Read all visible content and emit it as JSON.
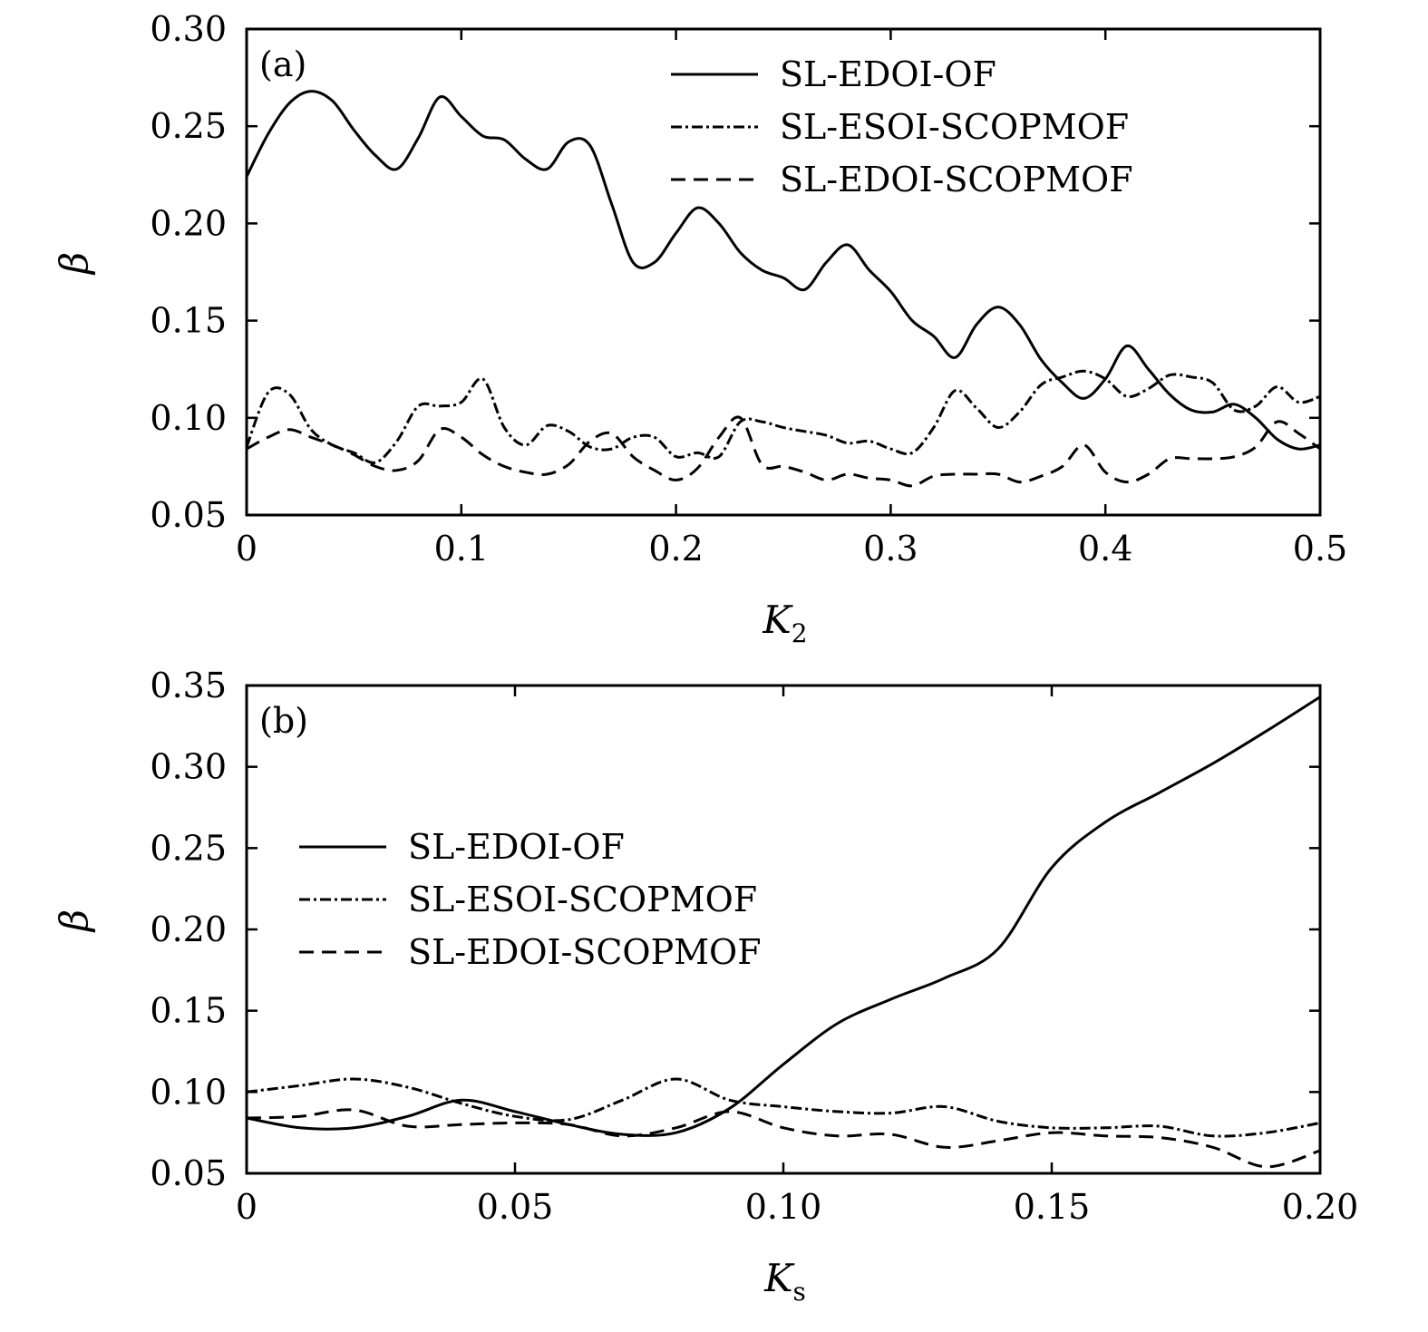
{
  "chart_data": [
    {
      "type": "line",
      "panel_label": "(a)",
      "xlabel": "K",
      "xlabel_sub": "2",
      "ylabel": "β",
      "xlim": [
        0,
        0.5
      ],
      "ylim": [
        0.05,
        0.3
      ],
      "xticks": [
        0,
        0.1,
        0.2,
        0.3,
        0.4,
        0.5
      ],
      "xtick_labels": [
        "0",
        "0.1",
        "0.2",
        "0.3",
        "0.4",
        "0.5"
      ],
      "yticks": [
        0.05,
        0.1,
        0.15,
        0.2,
        0.25,
        0.3
      ],
      "ytick_labels": [
        "0.05",
        "0.10",
        "0.15",
        "0.20",
        "0.25",
        "0.30"
      ],
      "legend_position": "top-right",
      "series": [
        {
          "name": "SL-EDOI-OF",
          "style": "solid",
          "x": [
            0,
            0.01,
            0.02,
            0.03,
            0.04,
            0.05,
            0.06,
            0.07,
            0.08,
            0.09,
            0.1,
            0.11,
            0.12,
            0.13,
            0.14,
            0.15,
            0.16,
            0.17,
            0.18,
            0.19,
            0.2,
            0.21,
            0.22,
            0.23,
            0.24,
            0.25,
            0.26,
            0.27,
            0.28,
            0.29,
            0.3,
            0.31,
            0.32,
            0.33,
            0.34,
            0.35,
            0.36,
            0.37,
            0.38,
            0.39,
            0.4,
            0.41,
            0.42,
            0.43,
            0.44,
            0.45,
            0.46,
            0.47,
            0.48,
            0.49,
            0.5
          ],
          "y": [
            0.224,
            0.246,
            0.262,
            0.268,
            0.263,
            0.248,
            0.235,
            0.228,
            0.244,
            0.265,
            0.255,
            0.245,
            0.243,
            0.233,
            0.228,
            0.242,
            0.24,
            0.21,
            0.18,
            0.18,
            0.195,
            0.208,
            0.2,
            0.185,
            0.176,
            0.172,
            0.166,
            0.18,
            0.189,
            0.176,
            0.165,
            0.15,
            0.142,
            0.131,
            0.148,
            0.157,
            0.148,
            0.13,
            0.118,
            0.11,
            0.12,
            0.137,
            0.125,
            0.112,
            0.104,
            0.103,
            0.107,
            0.1,
            0.089,
            0.084,
            0.086
          ]
        },
        {
          "name": "SL-ESOI-SCOPMOF",
          "style": "dashdot",
          "x": [
            0,
            0.01,
            0.02,
            0.03,
            0.04,
            0.05,
            0.06,
            0.07,
            0.08,
            0.09,
            0.1,
            0.11,
            0.12,
            0.13,
            0.14,
            0.15,
            0.16,
            0.17,
            0.18,
            0.19,
            0.2,
            0.21,
            0.22,
            0.23,
            0.24,
            0.25,
            0.26,
            0.27,
            0.28,
            0.29,
            0.3,
            0.31,
            0.32,
            0.33,
            0.34,
            0.35,
            0.36,
            0.37,
            0.38,
            0.39,
            0.4,
            0.41,
            0.42,
            0.43,
            0.44,
            0.45,
            0.46,
            0.47,
            0.48,
            0.49,
            0.5
          ],
          "y": [
            0.085,
            0.113,
            0.112,
            0.094,
            0.086,
            0.082,
            0.077,
            0.088,
            0.106,
            0.106,
            0.108,
            0.12,
            0.095,
            0.086,
            0.096,
            0.093,
            0.085,
            0.084,
            0.09,
            0.09,
            0.08,
            0.082,
            0.08,
            0.098,
            0.098,
            0.095,
            0.093,
            0.091,
            0.087,
            0.088,
            0.084,
            0.082,
            0.095,
            0.114,
            0.105,
            0.095,
            0.103,
            0.117,
            0.121,
            0.124,
            0.12,
            0.111,
            0.115,
            0.122,
            0.121,
            0.118,
            0.104,
            0.106,
            0.116,
            0.108,
            0.111
          ]
        },
        {
          "name": "SL-EDOI-SCOPMOF",
          "style": "dashed",
          "x": [
            0,
            0.01,
            0.02,
            0.03,
            0.04,
            0.05,
            0.06,
            0.07,
            0.08,
            0.09,
            0.1,
            0.11,
            0.12,
            0.13,
            0.14,
            0.15,
            0.16,
            0.17,
            0.18,
            0.19,
            0.2,
            0.21,
            0.22,
            0.23,
            0.24,
            0.25,
            0.26,
            0.27,
            0.28,
            0.29,
            0.3,
            0.31,
            0.32,
            0.33,
            0.34,
            0.35,
            0.36,
            0.37,
            0.38,
            0.39,
            0.4,
            0.41,
            0.42,
            0.43,
            0.44,
            0.45,
            0.46,
            0.47,
            0.48,
            0.49,
            0.5
          ],
          "y": [
            0.084,
            0.09,
            0.094,
            0.09,
            0.086,
            0.081,
            0.075,
            0.073,
            0.078,
            0.094,
            0.09,
            0.081,
            0.075,
            0.072,
            0.071,
            0.076,
            0.088,
            0.092,
            0.08,
            0.073,
            0.068,
            0.074,
            0.09,
            0.1,
            0.076,
            0.075,
            0.072,
            0.068,
            0.071,
            0.069,
            0.068,
            0.065,
            0.07,
            0.071,
            0.071,
            0.071,
            0.067,
            0.07,
            0.075,
            0.086,
            0.072,
            0.067,
            0.071,
            0.079,
            0.079,
            0.079,
            0.08,
            0.085,
            0.098,
            0.092,
            0.084
          ]
        }
      ]
    },
    {
      "type": "line",
      "panel_label": "(b)",
      "xlabel": "K",
      "xlabel_sub": "s",
      "ylabel": "β",
      "xlim": [
        0,
        0.2
      ],
      "ylim": [
        0.05,
        0.35
      ],
      "xticks": [
        0,
        0.05,
        0.1,
        0.15,
        0.2
      ],
      "xtick_labels": [
        "0",
        "0.05",
        "0.10",
        "0.15",
        "0.20"
      ],
      "yticks": [
        0.05,
        0.1,
        0.15,
        0.2,
        0.25,
        0.3,
        0.35
      ],
      "ytick_labels": [
        "0.05",
        "0.10",
        "0.15",
        "0.20",
        "0.25",
        "0.30",
        "0.35"
      ],
      "legend_position": "upper-left",
      "series": [
        {
          "name": "SL-EDOI-OF",
          "style": "solid",
          "x": [
            0,
            0.01,
            0.02,
            0.03,
            0.04,
            0.05,
            0.06,
            0.07,
            0.08,
            0.09,
            0.1,
            0.11,
            0.12,
            0.13,
            0.14,
            0.15,
            0.16,
            0.17,
            0.18,
            0.19,
            0.2
          ],
          "y": [
            0.084,
            0.078,
            0.078,
            0.085,
            0.095,
            0.088,
            0.08,
            0.074,
            0.075,
            0.09,
            0.117,
            0.142,
            0.157,
            0.17,
            0.188,
            0.238,
            0.266,
            0.284,
            0.302,
            0.322,
            0.343
          ]
        },
        {
          "name": "SL-ESOI-SCOPMOF",
          "style": "dashdot",
          "x": [
            0,
            0.01,
            0.02,
            0.03,
            0.04,
            0.05,
            0.06,
            0.07,
            0.08,
            0.09,
            0.1,
            0.11,
            0.12,
            0.13,
            0.14,
            0.15,
            0.16,
            0.17,
            0.18,
            0.19,
            0.2
          ],
          "y": [
            0.1,
            0.104,
            0.108,
            0.103,
            0.093,
            0.085,
            0.083,
            0.095,
            0.108,
            0.095,
            0.091,
            0.088,
            0.087,
            0.091,
            0.082,
            0.078,
            0.078,
            0.079,
            0.073,
            0.075,
            0.081
          ]
        },
        {
          "name": "SL-EDOI-SCOPMOF",
          "style": "dashed",
          "x": [
            0,
            0.01,
            0.02,
            0.03,
            0.04,
            0.05,
            0.06,
            0.07,
            0.08,
            0.09,
            0.1,
            0.11,
            0.12,
            0.13,
            0.14,
            0.15,
            0.16,
            0.17,
            0.18,
            0.19,
            0.2
          ],
          "y": [
            0.084,
            0.085,
            0.089,
            0.079,
            0.08,
            0.081,
            0.08,
            0.073,
            0.078,
            0.088,
            0.078,
            0.073,
            0.074,
            0.066,
            0.07,
            0.075,
            0.073,
            0.072,
            0.066,
            0.054,
            0.064
          ]
        }
      ]
    }
  ]
}
